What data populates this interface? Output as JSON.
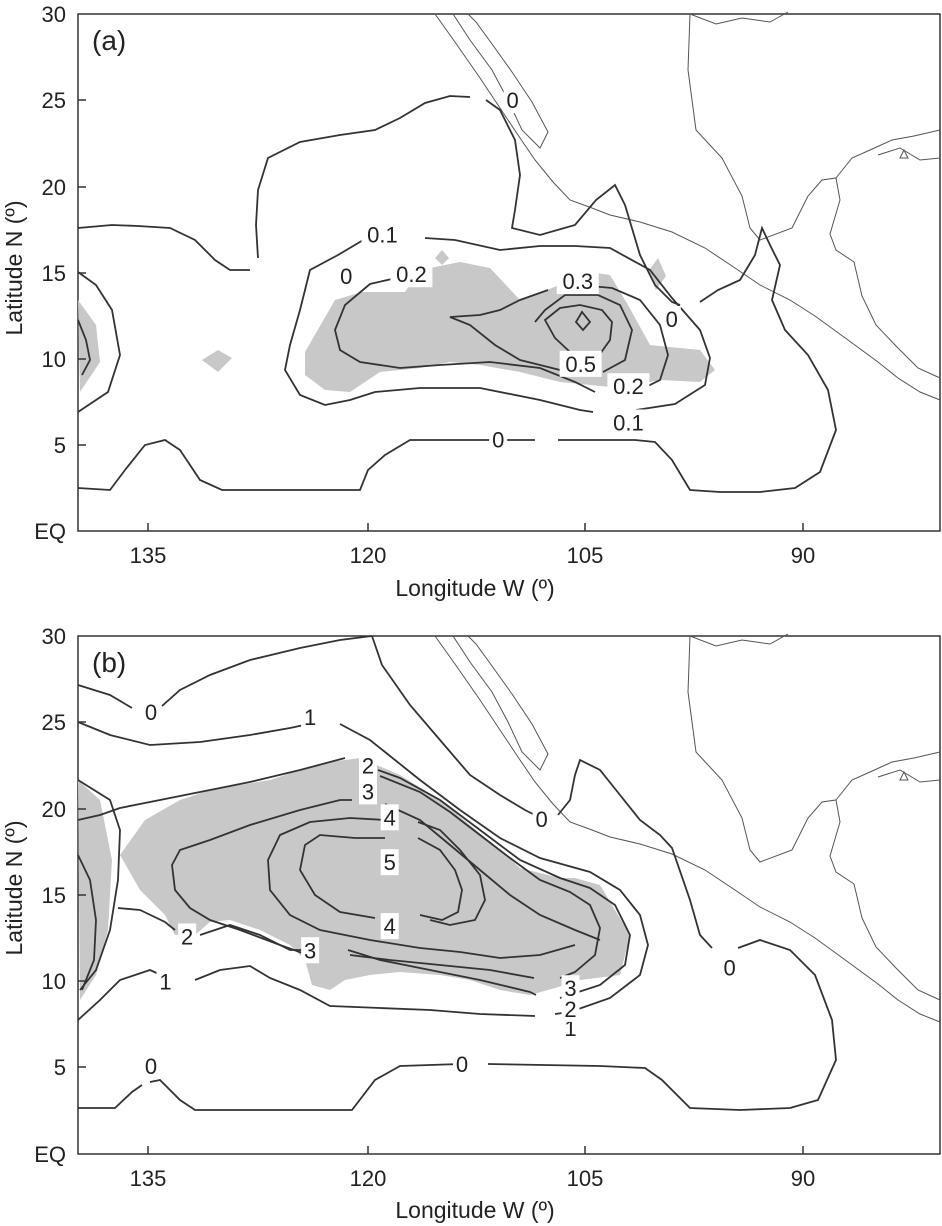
{
  "chart_data": [
    {
      "type": "contour",
      "panel_label": "(a)",
      "xlabel": "Longitude W (º)",
      "ylabel": "Latitude N (º)",
      "xticks": [
        "135",
        "120",
        "105",
        "90"
      ],
      "yticks": [
        "EQ",
        "5",
        "10",
        "15",
        "20",
        "25",
        "30"
      ],
      "contour_labels": [
        {
          "text": "0",
          "lon": 121.5,
          "lat": 14.8
        },
        {
          "text": "0",
          "lon": 110.0,
          "lat": 25.0
        },
        {
          "text": "0",
          "lon": 99.0,
          "lat": 12.3
        },
        {
          "text": "0",
          "lon": 111.0,
          "lat": 5.3
        },
        {
          "text": "0.1",
          "lon": 119.0,
          "lat": 17.2
        },
        {
          "text": "0.1",
          "lon": 102.0,
          "lat": 6.3
        },
        {
          "text": "0.2",
          "lon": 117.0,
          "lat": 14.9
        },
        {
          "text": "0.2",
          "lon": 102.0,
          "lat": 8.4
        },
        {
          "text": "0.3",
          "lon": 105.5,
          "lat": 14.5
        },
        {
          "text": "0.5",
          "lon": 105.3,
          "lat": 9.7
        }
      ]
    },
    {
      "type": "contour",
      "panel_label": "(b)",
      "xlabel": "Longitude W (º)",
      "ylabel": "Latitude N (º)",
      "xticks": [
        "135",
        "120",
        "105",
        "90"
      ],
      "yticks": [
        "EQ",
        "5",
        "10",
        "15",
        "20",
        "25",
        "30"
      ],
      "contour_labels": [
        {
          "text": "0",
          "lon": 135.0,
          "lat": 25.6
        },
        {
          "text": "0",
          "lon": 108.0,
          "lat": 19.4
        },
        {
          "text": "0",
          "lon": 95.0,
          "lat": 10.8
        },
        {
          "text": "0",
          "lon": 135.0,
          "lat": 5.1
        },
        {
          "text": "0",
          "lon": 113.5,
          "lat": 5.2
        },
        {
          "text": "1",
          "lon": 124.0,
          "lat": 25.3
        },
        {
          "text": "1",
          "lon": 134.0,
          "lat": 10.0
        },
        {
          "text": "1",
          "lon": 106.0,
          "lat": 7.3
        },
        {
          "text": "2",
          "lon": 120.0,
          "lat": 22.5
        },
        {
          "text": "2",
          "lon": 132.5,
          "lat": 12.6
        },
        {
          "text": "2",
          "lon": 106.0,
          "lat": 8.4
        },
        {
          "text": "3",
          "lon": 120.0,
          "lat": 21.0
        },
        {
          "text": "3",
          "lon": 124.0,
          "lat": 11.8
        },
        {
          "text": "3",
          "lon": 106.0,
          "lat": 9.6
        },
        {
          "text": "4",
          "lon": 118.5,
          "lat": 19.5
        },
        {
          "text": "4",
          "lon": 118.5,
          "lat": 13.2
        },
        {
          "text": "5",
          "lon": 118.5,
          "lat": 16.9
        }
      ]
    }
  ]
}
